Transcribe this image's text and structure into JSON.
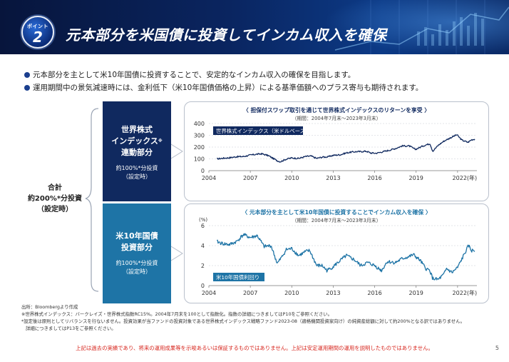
{
  "header": {
    "badge_label": "ポイント",
    "badge_number": "2",
    "title": "元本部分を米国債に投資してインカム収入を確保"
  },
  "bullets": [
    "元本部分を主として米10年国債に投資することで、安定的なインカム収入の確保を目指します。",
    "運用期間中の景気減速時には、金利低下（米10年国債価格の上昇）による基準価額へのプラス寄与も期待されます。"
  ],
  "total": {
    "line1": "合計",
    "line2": "約200%*分投資",
    "line3": "（設定時）"
  },
  "equity_block": {
    "title_line1": "世界株式",
    "title_line2": "インデックス",
    "title_mark": "※",
    "title_line3": "連動部分",
    "sub_line1": "約100%*分投資",
    "sub_line2": "（設定時）"
  },
  "bond_block": {
    "title_line1": "米10年国債",
    "title_line2": "投資部分",
    "sub_line1": "約100%*分投資",
    "sub_line2": "（設定時）"
  },
  "colors": {
    "navy": "#10295f",
    "teal": "#1e74a6",
    "red": "#d7261e"
  },
  "chart_data": [
    {
      "type": "line",
      "title": "〈 担保付スワップ取引を通じて世界株式インデックスのリターンを享受 〉",
      "subtitle": "（期間：2004年7月末～2023年3月末）",
      "series": [
        {
          "name": "世界株式インデックス（米ドルベース）"
        }
      ],
      "x_ticks": [
        "2004",
        "2007",
        "2010",
        "2013",
        "2016",
        "2019",
        "2022(年)"
      ],
      "y_ticks": [
        "0",
        "100",
        "200",
        "300",
        "400"
      ],
      "ylim": [
        0,
        400
      ],
      "x": [
        2004.58,
        2005.0,
        2005.5,
        2006.0,
        2006.5,
        2007.0,
        2007.5,
        2007.83,
        2008.3,
        2008.7,
        2009.0,
        2009.17,
        2009.6,
        2010.0,
        2010.5,
        2011.0,
        2011.4,
        2011.8,
        2012.2,
        2012.6,
        2013.0,
        2013.5,
        2014.0,
        2014.5,
        2015.0,
        2015.4,
        2015.7,
        2016.1,
        2016.5,
        2017.0,
        2017.5,
        2018.0,
        2018.5,
        2018.95,
        2019.5,
        2020.0,
        2020.2,
        2020.6,
        2021.0,
        2021.5,
        2021.95,
        2022.3,
        2022.75,
        2023.0,
        2023.25
      ],
      "values": [
        100,
        105,
        110,
        118,
        120,
        132,
        140,
        143,
        128,
        100,
        82,
        76,
        98,
        108,
        104,
        120,
        124,
        104,
        115,
        117,
        130,
        135,
        152,
        160,
        162,
        165,
        150,
        148,
        158,
        172,
        188,
        210,
        210,
        180,
        210,
        230,
        165,
        215,
        250,
        280,
        305,
        260,
        240,
        262,
        268
      ],
      "noise": 0.032
    },
    {
      "type": "line",
      "title": "〈 元本部分を主として米10年国債に投資することでインカム収入を確保 〉",
      "subtitle": "（期間：2004年7月末～2023年3月末）",
      "ylabel": "(%)",
      "series": [
        {
          "name": "米10年国債利回り"
        }
      ],
      "x_ticks": [
        "2004",
        "2007",
        "2010",
        "2013",
        "2016",
        "2019",
        "2022(年)"
      ],
      "y_ticks": [
        "0",
        "2",
        "4",
        "6"
      ],
      "ylim": [
        0,
        6
      ],
      "x": [
        2004.58,
        2005.0,
        2005.5,
        2006.0,
        2006.5,
        2007.0,
        2007.5,
        2008.0,
        2008.5,
        2008.95,
        2009.3,
        2009.6,
        2010.0,
        2010.5,
        2011.0,
        2011.3,
        2011.8,
        2012.2,
        2012.55,
        2013.0,
        2013.5,
        2013.95,
        2014.5,
        2015.0,
        2015.5,
        2016.0,
        2016.5,
        2016.9,
        2017.5,
        2018.0,
        2018.5,
        2018.8,
        2019.3,
        2019.7,
        2020.0,
        2020.2,
        2020.6,
        2021.0,
        2021.2,
        2021.6,
        2022.0,
        2022.4,
        2022.8,
        2023.0,
        2023.25
      ],
      "values": [
        4.4,
        4.2,
        4.1,
        4.4,
        5.1,
        4.8,
        5.0,
        3.9,
        4.0,
        2.2,
        2.9,
        3.6,
        3.7,
        3.0,
        3.4,
        3.5,
        2.0,
        2.0,
        1.5,
        1.9,
        2.5,
        3.0,
        2.6,
        2.0,
        2.3,
        2.0,
        1.5,
        2.4,
        2.3,
        2.7,
        2.9,
        3.1,
        2.5,
        1.7,
        1.5,
        0.7,
        0.6,
        1.1,
        1.7,
        1.3,
        1.8,
        2.9,
        4.0,
        3.5,
        3.5
      ],
      "noise": 0.06
    }
  ],
  "notes": {
    "source": "出所：Bloombergより作成",
    "note1": "※世界株式インデックス：バークレイズ・世界株式指数RC15%。2004年7月末を100として指数化。指数の詳細につきましてはP10をご参照ください。",
    "note2": "*設定後は原則としてリバランスを行ないません。投資効果が当ファンドの投資対象である世界株式インデックス戦略ファンド2023-08（適格機関投資家向け）の純資産総額に対して約200%となる訳ではありません。",
    "note3": "詳細につきましてはP13をご参照ください。"
  },
  "disclaimer": "上記は過去の実績であり、将来の運用成果等を示唆あるいは保証するものではありません。上記は安定運用期間の運用を説明したものではありません。",
  "page_number": "5"
}
